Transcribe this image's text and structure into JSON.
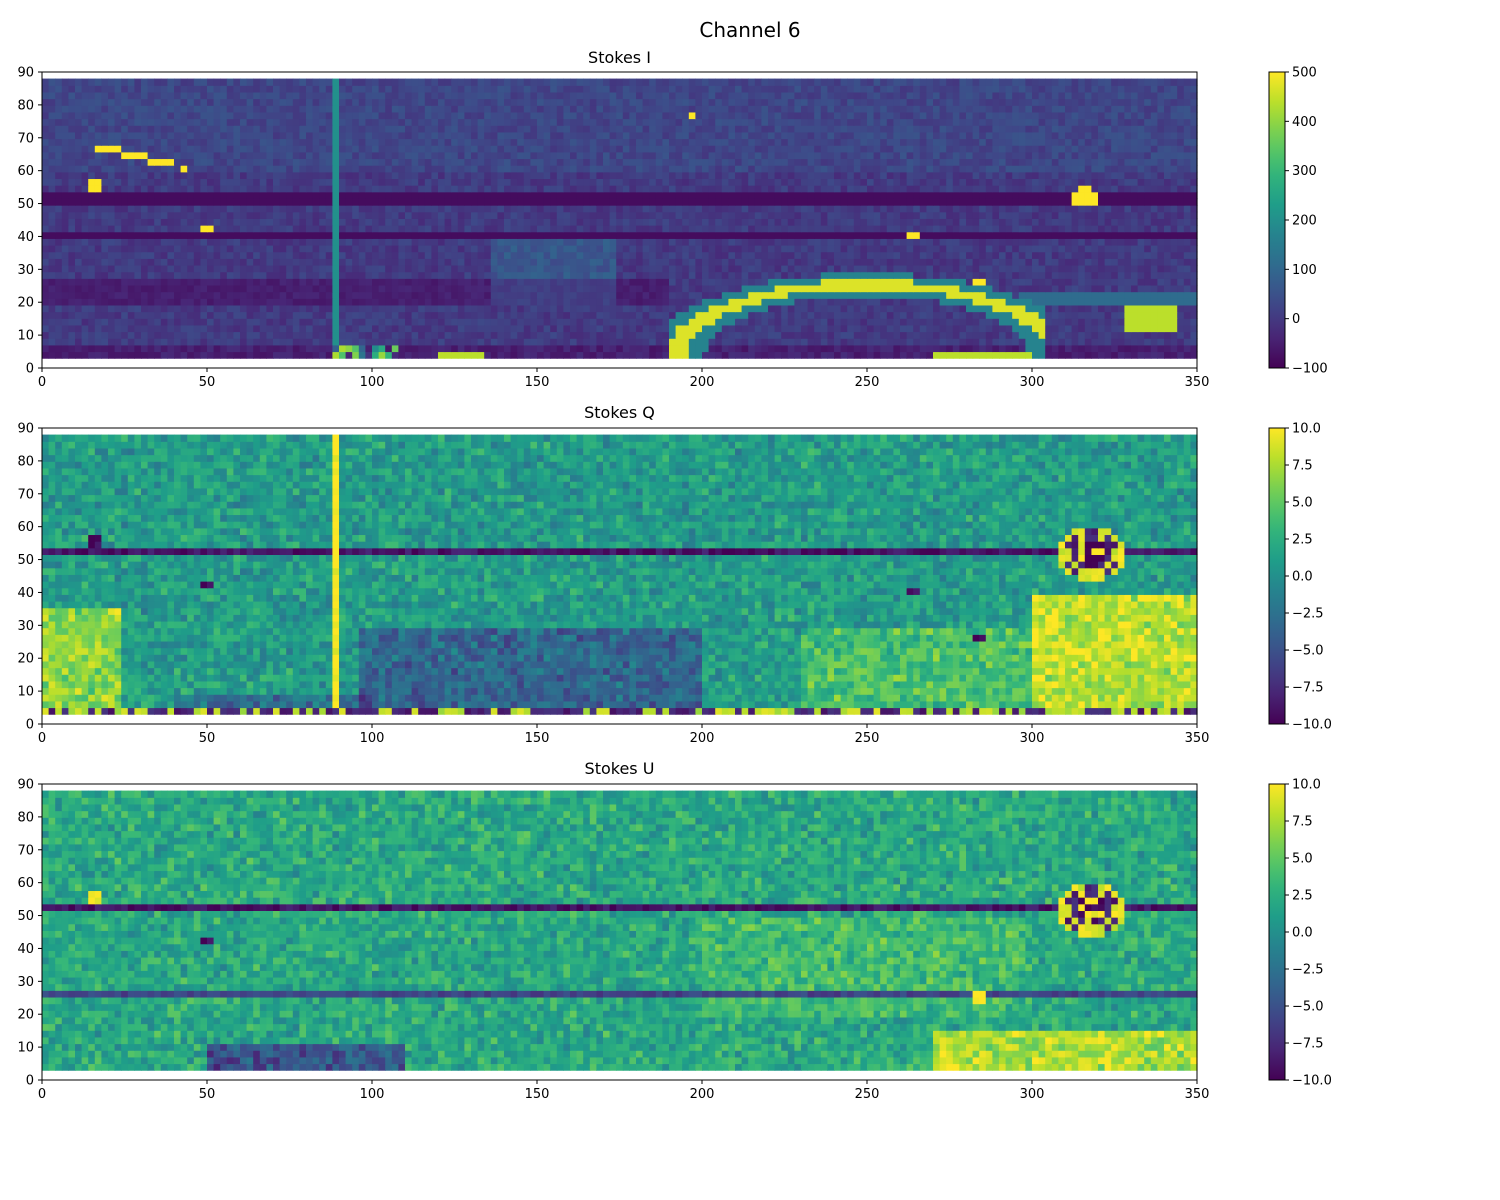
{
  "figure": {
    "title": "Channel 6"
  },
  "chart_data": [
    {
      "type": "heatmap",
      "title": "Stokes I",
      "colormap": "viridis",
      "xlim": [
        0,
        350
      ],
      "ylim": [
        0,
        90
      ],
      "data_rows": [
        3,
        88
      ],
      "xticks": [
        0,
        50,
        100,
        150,
        200,
        250,
        300,
        350
      ],
      "yticks": [
        0,
        10,
        20,
        30,
        40,
        50,
        60,
        70,
        80,
        90
      ],
      "colorbar": {
        "vmin": -100,
        "vmax": 500,
        "ticks": [
          -100,
          0,
          100,
          200,
          300,
          400,
          500
        ],
        "tick_labels": [
          "−100",
          "0",
          "100",
          "200",
          "300",
          "400",
          "500"
        ]
      },
      "features": [
        {
          "kind": "arc",
          "description": "bright elliptical arc",
          "x_range": [
            192,
            305
          ],
          "y_peak": 26
        },
        {
          "kind": "spot",
          "x": 316,
          "y": 52
        },
        {
          "kind": "spot",
          "x": 16,
          "y": 56
        },
        {
          "kind": "spot",
          "x": 50,
          "y": 42
        },
        {
          "kind": "spot",
          "x": 264,
          "y": 40
        },
        {
          "kind": "spot",
          "x": 284,
          "y": 26
        },
        {
          "kind": "streak",
          "x1": 15,
          "y1": 68,
          "x2": 43,
          "y2": 61
        },
        {
          "kind": "dark_row",
          "y": 52
        },
        {
          "kind": "dark_row",
          "y": 40
        },
        {
          "kind": "vertical_line",
          "x": 89
        }
      ]
    },
    {
      "type": "heatmap",
      "title": "Stokes Q",
      "colormap": "viridis",
      "xlim": [
        0,
        350
      ],
      "ylim": [
        0,
        90
      ],
      "data_rows": [
        3,
        88
      ],
      "xticks": [
        0,
        50,
        100,
        150,
        200,
        250,
        300,
        350
      ],
      "yticks": [
        0,
        10,
        20,
        30,
        40,
        50,
        60,
        70,
        80,
        90
      ],
      "colorbar": {
        "vmin": -10.0,
        "vmax": 10.0,
        "ticks": [
          -10.0,
          -7.5,
          -5.0,
          -2.5,
          0.0,
          2.5,
          5.0,
          7.5,
          10.0
        ],
        "tick_labels": [
          "−10.0",
          "−7.5",
          "−5.0",
          "−2.5",
          "0.0",
          "2.5",
          "5.0",
          "7.5",
          "10.0"
        ]
      },
      "features": [
        {
          "kind": "ring",
          "x": 318,
          "y": 52
        },
        {
          "kind": "vertical_line",
          "x": 89
        },
        {
          "kind": "dark_row",
          "y": 52
        },
        {
          "kind": "bright_region",
          "description": "lower right",
          "x_range": [
            300,
            350
          ],
          "y_range": [
            3,
            40
          ]
        },
        {
          "kind": "bright_region",
          "description": "lower left",
          "x_range": [
            0,
            30
          ],
          "y_range": [
            3,
            35
          ]
        },
        {
          "kind": "dark_region",
          "description": "lower middle",
          "x_range": [
            100,
            200
          ],
          "y_range": [
            3,
            30
          ]
        }
      ]
    },
    {
      "type": "heatmap",
      "title": "Stokes U",
      "colormap": "viridis",
      "xlim": [
        0,
        350
      ],
      "ylim": [
        0,
        90
      ],
      "data_rows": [
        3,
        88
      ],
      "xticks": [
        0,
        50,
        100,
        150,
        200,
        250,
        300,
        350
      ],
      "yticks": [
        0,
        10,
        20,
        30,
        40,
        50,
        60,
        70,
        80,
        90
      ],
      "colorbar": {
        "vmin": -10.0,
        "vmax": 10.0,
        "ticks": [
          -10.0,
          -7.5,
          -5.0,
          -2.5,
          0.0,
          2.5,
          5.0,
          7.5,
          10.0
        ],
        "tick_labels": [
          "−10.0",
          "−7.5",
          "−5.0",
          "−2.5",
          "0.0",
          "2.5",
          "5.0",
          "7.5",
          "10.0"
        ]
      },
      "features": [
        {
          "kind": "ring",
          "x": 318,
          "y": 52
        },
        {
          "kind": "dark_row",
          "y": 52
        },
        {
          "kind": "dark_row",
          "y": 26
        },
        {
          "kind": "spot",
          "x": 284,
          "y": 26
        },
        {
          "kind": "spot",
          "x": 16,
          "y": 56
        },
        {
          "kind": "bright_region",
          "description": "lower right",
          "x_range": [
            270,
            350
          ],
          "y_range": [
            3,
            15
          ]
        },
        {
          "kind": "dark_region",
          "description": "lower left-middle",
          "x_range": [
            50,
            110
          ],
          "y_range": [
            3,
            12
          ]
        }
      ]
    }
  ]
}
